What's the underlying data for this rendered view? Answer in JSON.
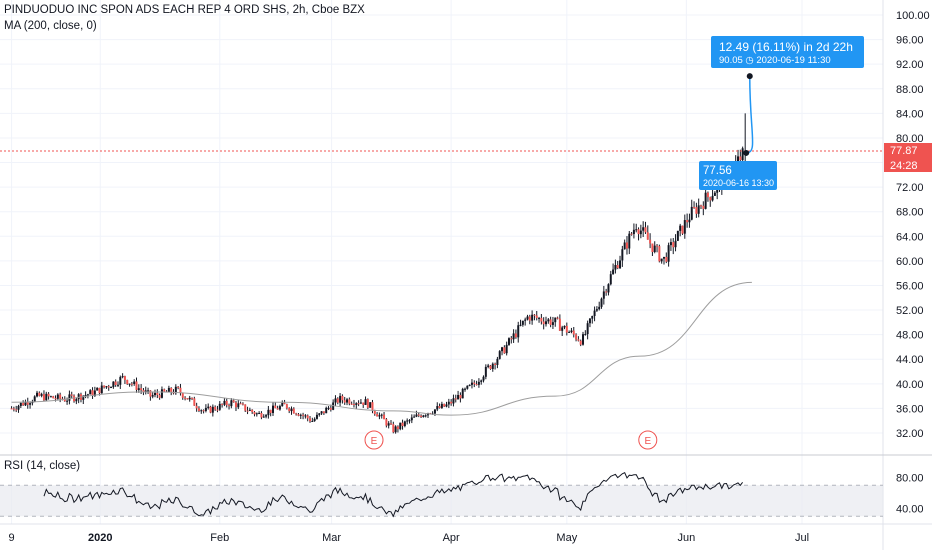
{
  "header": {
    "title": "PINDUODUO INC SPON ADS EACH REP 4 ORD SHS, 2h, Cboe BZX",
    "ma_label": "MA (200, close, 0)"
  },
  "rsi": {
    "label": "RSI (14, close)",
    "ticks": [
      "80.00",
      "40.00"
    ],
    "range": [
      20,
      100
    ],
    "band": [
      30,
      70
    ]
  },
  "price_tag": {
    "value": "77.87",
    "countdown": "24:28"
  },
  "measure": {
    "headline": "12.49 (16.11%) in 2d 22h",
    "target": "90.05 ◷ 2020-06-19  11:30",
    "start_value": "77.56",
    "start_date": "2020-06-16 13:30"
  },
  "earnings_markers": [
    "E",
    "E"
  ],
  "colors": {
    "up": "#26a69a",
    "down": "#ef5350",
    "body": "#131722",
    "ma": "#9e9e9e",
    "measure": "#2196f3",
    "price_line": "#ef5350",
    "rsi_line": "#131722"
  },
  "chart_data": {
    "type": "candlestick",
    "title": "PINDUODUO INC SPON ADS EACH REP 4 ORD SHS, 2h, Cboe BZX",
    "ylim": [
      30,
      102
    ],
    "y_ticks": [
      "100.00",
      "96.00",
      "92.00",
      "88.00",
      "84.00",
      "80.00",
      "76.00",
      "72.00",
      "68.00",
      "64.00",
      "60.00",
      "56.00",
      "52.00",
      "48.00",
      "44.00",
      "40.00",
      "36.00",
      "32.00"
    ],
    "x_tick_labels": [
      "9",
      "2020",
      "Feb",
      "Mar",
      "Apr",
      "May",
      "Jun",
      "Jul"
    ],
    "price_path": [
      [
        "2019-12-09",
        36
      ],
      [
        "2019-12-16",
        38
      ],
      [
        "2019-12-23",
        37.5
      ],
      [
        "2019-12-30",
        38.5
      ],
      [
        "2020-01-07",
        41
      ],
      [
        "2020-01-14",
        38
      ],
      [
        "2020-01-21",
        39
      ],
      [
        "2020-01-28",
        35.5
      ],
      [
        "2020-02-04",
        37
      ],
      [
        "2020-02-11",
        35
      ],
      [
        "2020-02-18",
        36.5
      ],
      [
        "2020-02-25",
        34
      ],
      [
        "2020-03-03",
        37.5
      ],
      [
        "2020-03-10",
        37
      ],
      [
        "2020-03-17",
        32.5
      ],
      [
        "2020-03-24",
        35
      ],
      [
        "2020-03-31",
        36.5
      ],
      [
        "2020-04-07",
        40
      ],
      [
        "2020-04-14",
        45
      ],
      [
        "2020-04-21",
        51
      ],
      [
        "2020-04-28",
        50
      ],
      [
        "2020-05-05",
        47
      ],
      [
        "2020-05-12",
        57
      ],
      [
        "2020-05-19",
        66
      ],
      [
        "2020-05-26",
        60
      ],
      [
        "2020-06-02",
        67.5
      ],
      [
        "2020-06-09",
        72
      ],
      [
        "2020-06-16",
        77.5
      ]
    ],
    "ma_200": [
      [
        "2019-12-09",
        37
      ],
      [
        "2020-01-14",
        38.7
      ],
      [
        "2020-02-18",
        37
      ],
      [
        "2020-03-17",
        35.6
      ],
      [
        "2020-04-01",
        34.9
      ],
      [
        "2020-04-28",
        38
      ],
      [
        "2020-05-20",
        44.5
      ],
      [
        "2020-06-18",
        56.5
      ]
    ],
    "projection": {
      "from": [
        "2020-06-16",
        77.56
      ],
      "to": [
        "2020-06-19",
        90.05
      ]
    },
    "last_price": 77.87,
    "earnings_dates": [
      "2020-03-12",
      "2020-05-22"
    ]
  }
}
